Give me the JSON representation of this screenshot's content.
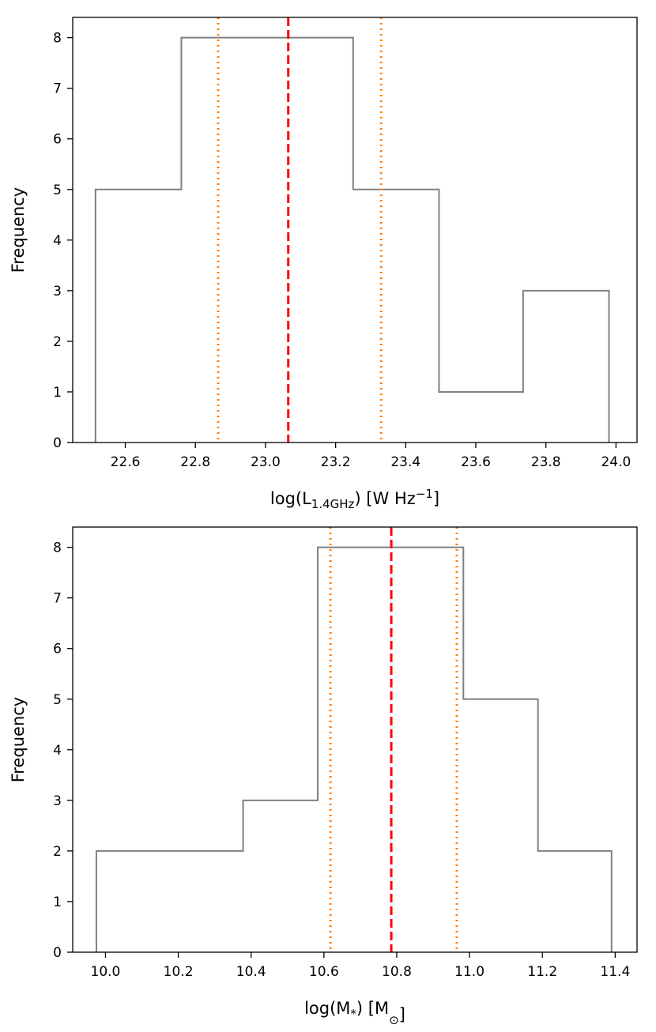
{
  "colors": {
    "histogram": "#808080",
    "median": "#ff0000",
    "percentile": "#ff7f0e",
    "axes": "#000000",
    "background": "#ffffff"
  },
  "chart_data": [
    {
      "type": "histogram",
      "title": "",
      "xlabel": {
        "prefix": "log(L",
        "subscript": "1.4GHz",
        "middle": ") [W Hz",
        "superscript": "−1",
        "suffix": "]"
      },
      "ylabel": "Frequency",
      "xlim": [
        22.45,
        24.06
      ],
      "ylim": [
        0,
        8.4
      ],
      "bin_edges": [
        22.515,
        22.76,
        23.005,
        23.25,
        23.495,
        23.735,
        23.98
      ],
      "counts": [
        5,
        8,
        8,
        5,
        1,
        3
      ],
      "xticks": [
        "22.6",
        "22.8",
        "23.0",
        "23.2",
        "23.4",
        "23.6",
        "23.8",
        "24.0"
      ],
      "xtick_values": [
        22.6,
        22.8,
        23.0,
        23.2,
        23.4,
        23.6,
        23.8,
        24.0
      ],
      "yticks": [
        "0",
        "1",
        "2",
        "3",
        "4",
        "5",
        "6",
        "7",
        "8"
      ],
      "ytick_values": [
        0,
        1,
        2,
        3,
        4,
        5,
        6,
        7,
        8
      ],
      "median": 23.065,
      "percentiles": [
        22.865,
        23.33
      ],
      "grid": false
    },
    {
      "type": "histogram",
      "title": "",
      "xlabel": {
        "prefix": "log(M",
        "subscript": "*",
        "middle": ") [M",
        "subscript2": "⊙",
        "suffix": "]"
      },
      "ylabel": "Frequency",
      "xlim": [
        9.91,
        11.46
      ],
      "ylim": [
        0,
        8.4
      ],
      "bin_edges": [
        9.975,
        10.378,
        10.583,
        10.983,
        11.188,
        11.39
      ],
      "counts": [
        2,
        3,
        8,
        5,
        2
      ],
      "xticks": [
        "10.0",
        "10.2",
        "10.4",
        "10.6",
        "10.8",
        "11.0",
        "11.2",
        "11.4"
      ],
      "xtick_values": [
        10.0,
        10.2,
        10.4,
        10.6,
        10.8,
        11.0,
        11.2,
        11.4
      ],
      "yticks": [
        "0",
        "1",
        "2",
        "3",
        "4",
        "5",
        "6",
        "7",
        "8"
      ],
      "ytick_values": [
        0,
        1,
        2,
        3,
        4,
        5,
        6,
        7,
        8
      ],
      "median": 10.785,
      "percentiles": [
        10.618,
        10.965
      ],
      "grid": false
    }
  ]
}
